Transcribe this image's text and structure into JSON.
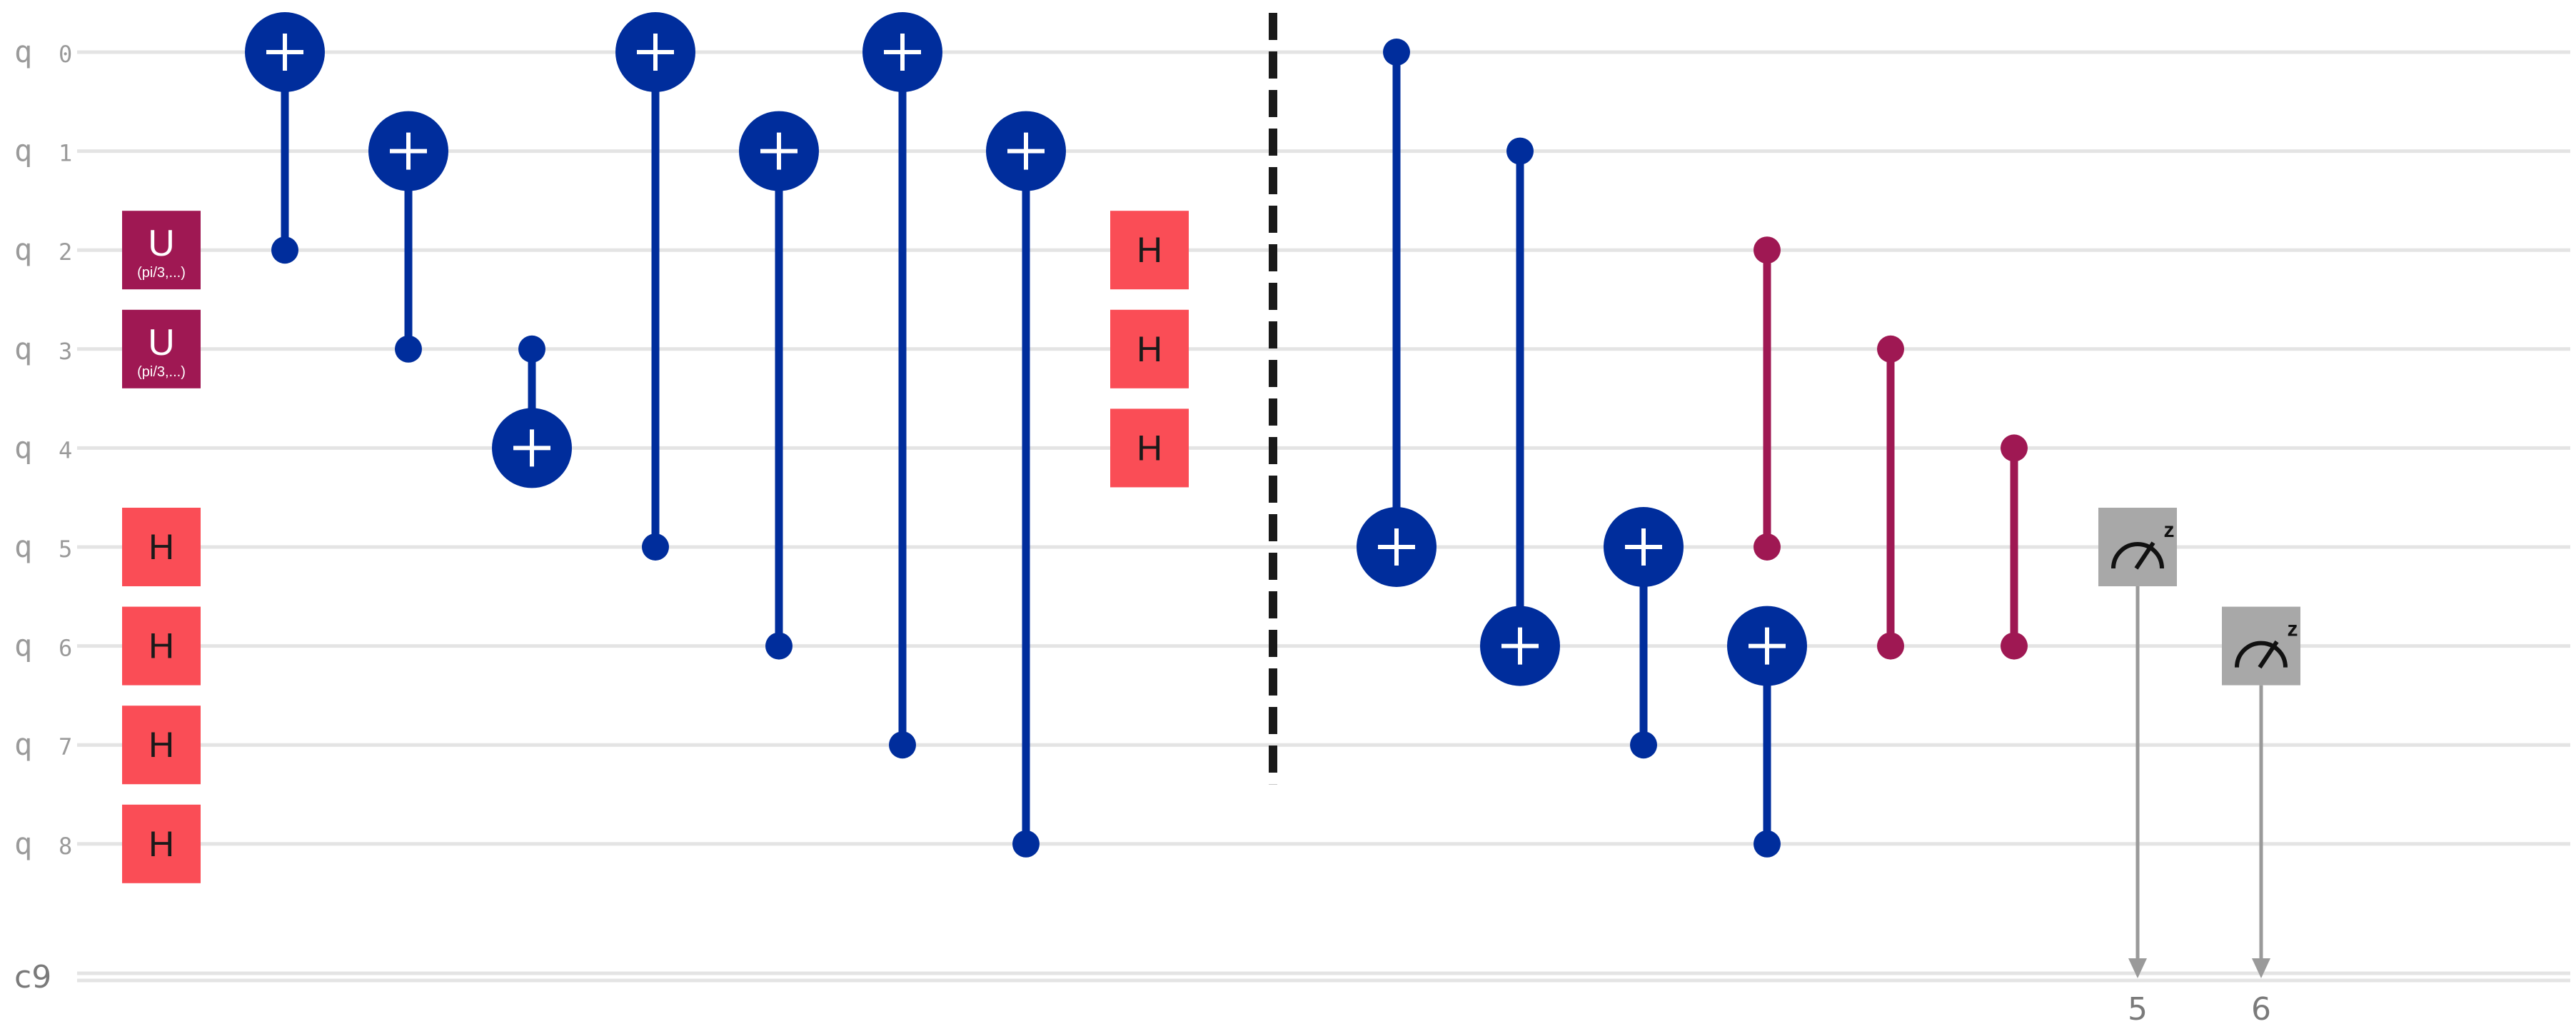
{
  "colors": {
    "wire": "#e4e4e4",
    "cnot": "#002d9c",
    "controlled_z": "#9f1853",
    "unitary": "#9f1853",
    "hadamard": "#fa4d56",
    "measure": "#a8a8a8",
    "measure_line": "#9a9a9a",
    "barrier": "#1a1a1a",
    "text_light": "#ffffff",
    "text_dark": "#1a1a1a"
  },
  "qubit_wires": [
    {
      "reg": "q",
      "index": "0"
    },
    {
      "reg": "q",
      "index": "1"
    },
    {
      "reg": "q",
      "index": "2"
    },
    {
      "reg": "q",
      "index": "3"
    },
    {
      "reg": "q",
      "index": "4"
    },
    {
      "reg": "q",
      "index": "5"
    },
    {
      "reg": "q",
      "index": "6"
    },
    {
      "reg": "q",
      "index": "7"
    },
    {
      "reg": "q",
      "index": "8"
    }
  ],
  "classical_wire": {
    "label": "c9"
  },
  "gates": [
    {
      "type": "U",
      "qubit": 2,
      "column": 0,
      "label": "U",
      "params": "(pi/3,...)"
    },
    {
      "type": "U",
      "qubit": 3,
      "column": 0,
      "label": "U",
      "params": "(pi/3,...)"
    },
    {
      "type": "H",
      "qubit": 5,
      "column": 0,
      "label": "H"
    },
    {
      "type": "H",
      "qubit": 6,
      "column": 0,
      "label": "H"
    },
    {
      "type": "H",
      "qubit": 7,
      "column": 0,
      "label": "H"
    },
    {
      "type": "H",
      "qubit": 8,
      "column": 0,
      "label": "H"
    },
    {
      "type": "CNOT",
      "control": 2,
      "target": 0,
      "column": 1
    },
    {
      "type": "CNOT",
      "control": 3,
      "target": 1,
      "column": 2
    },
    {
      "type": "CNOT",
      "control": 3,
      "target": 4,
      "column": 3
    },
    {
      "type": "CNOT",
      "control": 5,
      "target": 0,
      "column": 4
    },
    {
      "type": "CNOT",
      "control": 6,
      "target": 1,
      "column": 5
    },
    {
      "type": "CNOT",
      "control": 7,
      "target": 0,
      "column": 6
    },
    {
      "type": "CNOT",
      "control": 8,
      "target": 1,
      "column": 7
    },
    {
      "type": "H",
      "qubit": 2,
      "column": 8,
      "label": "H"
    },
    {
      "type": "H",
      "qubit": 3,
      "column": 8,
      "label": "H"
    },
    {
      "type": "H",
      "qubit": 4,
      "column": 8,
      "label": "H"
    },
    {
      "type": "BARRIER",
      "from": 0,
      "to": 7,
      "column": 9
    },
    {
      "type": "CNOT",
      "control": 0,
      "target": 5,
      "column": 10
    },
    {
      "type": "CNOT",
      "control": 1,
      "target": 6,
      "column": 11
    },
    {
      "type": "CNOT",
      "control": 7,
      "target": 5,
      "column": 12
    },
    {
      "type": "CNOT",
      "control": 8,
      "target": 6,
      "column": 13
    },
    {
      "type": "CZ",
      "a": 2,
      "b": 5,
      "column": 13
    },
    {
      "type": "CZ",
      "a": 3,
      "b": 6,
      "column": 14
    },
    {
      "type": "CZ",
      "a": 4,
      "b": 6,
      "column": 15
    },
    {
      "type": "MEASURE",
      "qubit": 5,
      "column": 16,
      "basis": "z",
      "cbit": "5"
    },
    {
      "type": "MEASURE",
      "qubit": 6,
      "column": 17,
      "basis": "z",
      "cbit": "6"
    }
  ]
}
